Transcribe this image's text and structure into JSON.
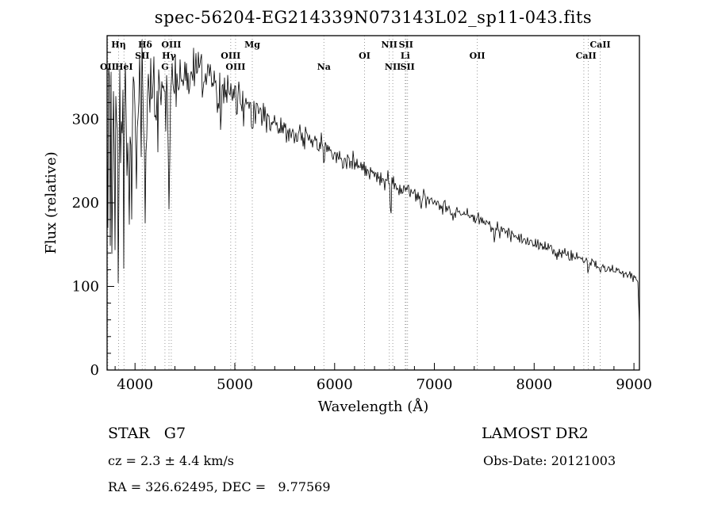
{
  "chart_data": {
    "type": "line",
    "title": "spec-56204-EG214339N073143L02_sp11-043.fits",
    "xlabel": "Wavelength (Å)",
    "ylabel": "Flux (relative)",
    "xlim": [
      3720,
      9055
    ],
    "ylim": [
      0,
      400
    ],
    "x_major_ticks": [
      4000,
      5000,
      6000,
      7000,
      8000,
      9000
    ],
    "x_minor_step": 200,
    "y_major_ticks": [
      0,
      100,
      200,
      300
    ],
    "y_minor_step": 20,
    "grid": false,
    "legend": "none",
    "continuum": [
      [
        3700,
        265
      ],
      [
        3720,
        285
      ],
      [
        3760,
        295
      ],
      [
        3800,
        300
      ],
      [
        3850,
        295
      ],
      [
        3900,
        305
      ],
      [
        3950,
        300
      ],
      [
        4000,
        318
      ],
      [
        4050,
        322
      ],
      [
        4100,
        315
      ],
      [
        4150,
        332
      ],
      [
        4200,
        330
      ],
      [
        4250,
        328
      ],
      [
        4300,
        318
      ],
      [
        4350,
        325
      ],
      [
        4400,
        345
      ],
      [
        4450,
        350
      ],
      [
        4500,
        352
      ],
      [
        4550,
        348
      ],
      [
        4600,
        358
      ],
      [
        4650,
        352
      ],
      [
        4700,
        348
      ],
      [
        4750,
        344
      ],
      [
        4800,
        340
      ],
      [
        4850,
        332
      ],
      [
        4900,
        336
      ],
      [
        4950,
        330
      ],
      [
        5000,
        326
      ],
      [
        5100,
        316
      ],
      [
        5200,
        314
      ],
      [
        5300,
        302
      ],
      [
        5400,
        292
      ],
      [
        5500,
        286
      ],
      [
        5600,
        281
      ],
      [
        5700,
        278
      ],
      [
        5800,
        274
      ],
      [
        5900,
        267
      ],
      [
        6000,
        259
      ],
      [
        6100,
        252
      ],
      [
        6200,
        246
      ],
      [
        6300,
        239
      ],
      [
        6400,
        233
      ],
      [
        6500,
        228
      ],
      [
        6600,
        222
      ],
      [
        6700,
        217
      ],
      [
        6800,
        212
      ],
      [
        6900,
        206
      ],
      [
        7000,
        201
      ],
      [
        7100,
        196
      ],
      [
        7200,
        191
      ],
      [
        7300,
        186
      ],
      [
        7400,
        181
      ],
      [
        7500,
        176
      ],
      [
        7600,
        171
      ],
      [
        7700,
        166
      ],
      [
        7800,
        161
      ],
      [
        7900,
        156
      ],
      [
        8000,
        151
      ],
      [
        8100,
        147
      ],
      [
        8200,
        143
      ],
      [
        8300,
        139
      ],
      [
        8400,
        135
      ],
      [
        8500,
        131
      ],
      [
        8600,
        127
      ],
      [
        8700,
        123
      ],
      [
        8800,
        119
      ],
      [
        8900,
        115
      ],
      [
        9000,
        111
      ],
      [
        9040,
        107
      ],
      [
        9055,
        58
      ]
    ],
    "noise_sigma": [
      [
        3700,
        55
      ],
      [
        3800,
        42
      ],
      [
        3900,
        38
      ],
      [
        4000,
        32
      ],
      [
        4200,
        27
      ],
      [
        4400,
        22
      ],
      [
        4600,
        17
      ],
      [
        4800,
        14
      ],
      [
        5000,
        12
      ],
      [
        5300,
        9
      ],
      [
        5600,
        7
      ],
      [
        6000,
        6
      ],
      [
        6500,
        5
      ],
      [
        7000,
        4.5
      ],
      [
        7600,
        4
      ],
      [
        8200,
        3.5
      ],
      [
        9055,
        3.5
      ]
    ],
    "absorption_lines": [
      [
        3727,
        60,
        6
      ],
      [
        3750,
        170,
        5
      ],
      [
        3770,
        120,
        5
      ],
      [
        3798,
        150,
        5
      ],
      [
        3835,
        170,
        5
      ],
      [
        3889,
        180,
        5
      ],
      [
        3933,
        140,
        5
      ],
      [
        3970,
        150,
        5
      ],
      [
        4026,
        70,
        5
      ],
      [
        4102,
        150,
        6
      ],
      [
        4227,
        60,
        5
      ],
      [
        4340,
        130,
        6
      ],
      [
        4383,
        60,
        5
      ],
      [
        4861,
        70,
        6
      ],
      [
        5175,
        30,
        9
      ],
      [
        5893,
        28,
        7
      ],
      [
        6563,
        45,
        6
      ],
      [
        6867,
        15,
        7
      ],
      [
        7186,
        10,
        7
      ],
      [
        7600,
        18,
        8
      ],
      [
        8230,
        12,
        7
      ],
      [
        8542,
        14,
        6
      ],
      [
        8662,
        12,
        6
      ]
    ],
    "line_markers": [
      {
        "label": "Hη",
        "wl": 3835,
        "row": 1
      },
      {
        "label": "Hδ",
        "wl": 4102,
        "row": 1
      },
      {
        "label": "OIII",
        "wl": 4363,
        "row": 1
      },
      {
        "label": "Mg",
        "wl": 5175,
        "row": 1
      },
      {
        "label": "NII",
        "wl": 6548,
        "row": 1
      },
      {
        "label": "SII",
        "wl": 6716,
        "row": 1
      },
      {
        "label": "CaII",
        "wl": 8662,
        "row": 1
      },
      {
        "label": "SII",
        "wl": 4072,
        "row": 2
      },
      {
        "label": "Hγ",
        "wl": 4340,
        "row": 2
      },
      {
        "label": "OIII",
        "wl": 4959,
        "row": 2
      },
      {
        "label": "OI",
        "wl": 6300,
        "row": 2
      },
      {
        "label": "Li",
        "wl": 6708,
        "row": 2
      },
      {
        "label": "OII",
        "wl": 7430,
        "row": 2
      },
      {
        "label": "CaII",
        "wl": 8520,
        "row": 2,
        "lines": [
          8498,
          8542
        ]
      },
      {
        "label": "OII",
        "wl": 3727,
        "row": 3
      },
      {
        "label": "HeI",
        "wl": 3889,
        "row": 3
      },
      {
        "label": "G",
        "wl": 4300,
        "row": 3
      },
      {
        "label": "OIII",
        "wl": 5007,
        "row": 3
      },
      {
        "label": "Na",
        "wl": 5893,
        "row": 3
      },
      {
        "label": "NII",
        "wl": 6583,
        "row": 3
      },
      {
        "label": "SII",
        "wl": 6731,
        "row": 3
      }
    ]
  },
  "annotations": {
    "object_class": "STAR   G7",
    "survey": "LAMOST DR2",
    "cz": "cz = 2.3 ± 4.4 km/s",
    "obs_date": "Obs-Date: 20121003",
    "radec": "RA = 326.62495, DEC =   9.77569"
  }
}
